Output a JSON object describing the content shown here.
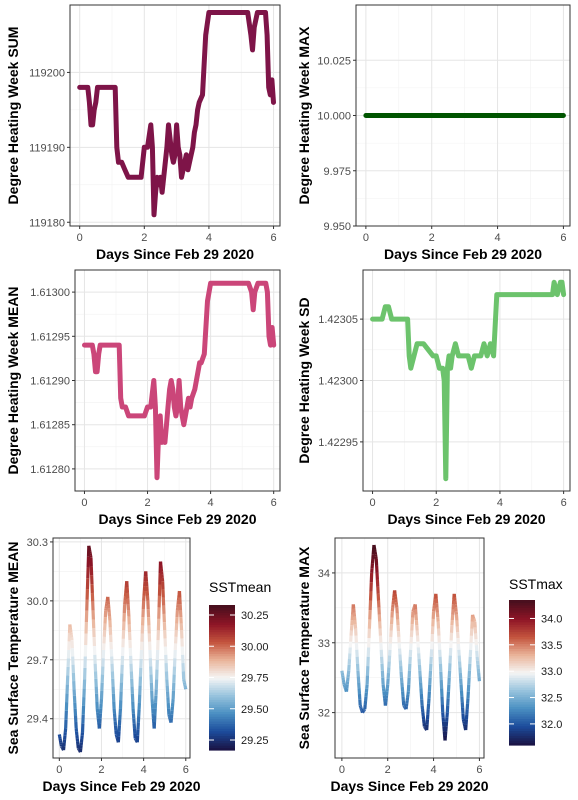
{
  "chart_data": [
    {
      "type": "line",
      "id": "p1",
      "xlabel": "Days Since Feb 29 2020",
      "ylabel": "Degree Heating Week SUM",
      "color": "#7e1448",
      "xlim": [
        -0.3,
        6.2
      ],
      "ylim": [
        119179.5,
        119209
      ],
      "xticks": [
        0,
        2,
        4,
        6
      ],
      "yticks": [
        119180,
        119190,
        119200
      ],
      "ytick_labels": [
        "119180",
        "119190",
        "119200"
      ],
      "x": [
        0,
        0.25,
        0.3,
        0.35,
        0.4,
        0.45,
        0.5,
        0.55,
        0.6,
        1.1,
        1.15,
        1.2,
        1.3,
        1.4,
        1.5,
        1.6,
        1.9,
        2.0,
        2.1,
        2.2,
        2.25,
        2.3,
        2.35,
        2.4,
        2.45,
        2.5,
        2.55,
        2.6,
        2.65,
        2.7,
        2.75,
        2.8,
        2.85,
        2.9,
        2.95,
        3.0,
        3.05,
        3.1,
        3.15,
        3.2,
        3.25,
        3.3,
        3.35,
        3.4,
        3.5,
        3.55,
        3.6,
        3.65,
        3.7,
        3.8,
        3.9,
        4.0,
        4.1,
        5.2,
        5.3,
        5.35,
        5.4,
        5.5,
        5.6,
        5.75,
        5.8,
        5.85,
        5.9,
        5.95,
        6.0
      ],
      "y": [
        119198,
        119198,
        119196,
        119193,
        119193,
        119195,
        119196,
        119198,
        119198,
        119198,
        119190,
        119188,
        119188,
        119187,
        119186,
        119186,
        119186,
        119190,
        119190,
        119193,
        119190,
        119181,
        119184,
        119186,
        119185,
        119186,
        119184,
        119186,
        119188,
        119190,
        119193,
        119191,
        119189,
        119188,
        119189,
        119193,
        119190,
        119189,
        119186,
        119187,
        119188,
        119189,
        119187,
        119188,
        119190,
        119192,
        119193,
        119195,
        119196,
        119197,
        119205,
        119208,
        119208,
        119208,
        119205,
        119203,
        119206,
        119208,
        119208,
        119208,
        119205,
        119198,
        119197,
        119199,
        119196
      ]
    },
    {
      "type": "line",
      "id": "p2",
      "xlabel": "Days Since Feb 29 2020",
      "ylabel": "Degree Heating Week MAX",
      "color": "#005500",
      "xlim": [
        -0.3,
        6.2
      ],
      "ylim": [
        9.95,
        10.05
      ],
      "xticks": [
        0,
        2,
        4,
        6
      ],
      "yticks": [
        9.95,
        9.975,
        10.0,
        10.025
      ],
      "ytick_labels": [
        "9.950",
        "9.975",
        "10.000",
        "10.025"
      ],
      "x": [
        0,
        6
      ],
      "y": [
        10.0,
        10.0
      ]
    },
    {
      "type": "line",
      "id": "p3",
      "xlabel": "Days Since Feb 29 2020",
      "ylabel": "Degree Heating Week MEAN",
      "color": "#cb4679",
      "xlim": [
        -0.3,
        6.2
      ],
      "ylim": [
        1.612775,
        1.613025
      ],
      "xticks": [
        0,
        2,
        4,
        6
      ],
      "yticks": [
        1.6128,
        1.61285,
        1.6129,
        1.61295,
        1.613
      ],
      "ytick_labels": [
        "1.61280",
        "1.61285",
        "1.61290",
        "1.61295",
        "1.61300"
      ],
      "x": [
        0,
        0.25,
        0.3,
        0.35,
        0.4,
        0.45,
        0.5,
        0.55,
        0.6,
        1.1,
        1.15,
        1.2,
        1.3,
        1.4,
        1.5,
        1.6,
        1.9,
        2.0,
        2.1,
        2.2,
        2.25,
        2.3,
        2.35,
        2.4,
        2.45,
        2.5,
        2.55,
        2.6,
        2.65,
        2.7,
        2.75,
        2.8,
        2.85,
        2.9,
        2.95,
        3.0,
        3.05,
        3.1,
        3.15,
        3.2,
        3.25,
        3.3,
        3.35,
        3.4,
        3.5,
        3.55,
        3.6,
        3.65,
        3.7,
        3.8,
        3.9,
        4.0,
        4.1,
        5.2,
        5.3,
        5.35,
        5.4,
        5.5,
        5.6,
        5.75,
        5.8,
        5.85,
        5.9,
        5.95,
        6.0
      ],
      "y": [
        1.61294,
        1.61294,
        1.61293,
        1.61291,
        1.61291,
        1.61293,
        1.61294,
        1.61294,
        1.61294,
        1.61294,
        1.61288,
        1.61287,
        1.61287,
        1.61286,
        1.61286,
        1.61286,
        1.61286,
        1.61287,
        1.61287,
        1.6129,
        1.61287,
        1.61279,
        1.61284,
        1.61286,
        1.61283,
        1.61284,
        1.61283,
        1.61285,
        1.61287,
        1.61289,
        1.6129,
        1.61289,
        1.61287,
        1.61286,
        1.61287,
        1.6129,
        1.61287,
        1.61286,
        1.61285,
        1.61286,
        1.61287,
        1.61288,
        1.61287,
        1.61288,
        1.61289,
        1.6129,
        1.61291,
        1.61292,
        1.61292,
        1.61293,
        1.61299,
        1.61301,
        1.61301,
        1.61301,
        1.613,
        1.61298,
        1.613,
        1.61301,
        1.61301,
        1.61301,
        1.613,
        1.61295,
        1.61294,
        1.61296,
        1.61294
      ]
    },
    {
      "type": "line",
      "id": "p4",
      "xlabel": "Days Since Feb 29 2020",
      "ylabel": "Degree Heating Week SD",
      "color": "#6cc36c",
      "xlim": [
        -0.3,
        6.2
      ],
      "ylim": [
        1.42291,
        1.42309
      ],
      "xticks": [
        0,
        2,
        4,
        6
      ],
      "yticks": [
        1.42295,
        1.423,
        1.42305
      ],
      "ytick_labels": [
        "1.42295",
        "1.42300",
        "1.42305"
      ],
      "x": [
        0,
        0.3,
        0.4,
        0.5,
        0.6,
        1.1,
        1.15,
        1.2,
        1.3,
        1.4,
        1.5,
        1.6,
        1.9,
        2.0,
        2.1,
        2.2,
        2.25,
        2.3,
        2.35,
        2.4,
        2.45,
        2.5,
        2.6,
        2.7,
        2.8,
        2.9,
        3.0,
        3.1,
        3.2,
        3.3,
        3.4,
        3.5,
        3.6,
        3.7,
        3.8,
        3.9,
        4.0,
        4.1,
        5.5,
        5.6,
        5.65,
        5.7,
        5.8,
        5.9,
        5.95,
        6.0
      ],
      "y": [
        1.42305,
        1.42305,
        1.42306,
        1.42306,
        1.42305,
        1.42305,
        1.42302,
        1.42301,
        1.42302,
        1.42303,
        1.42303,
        1.42303,
        1.42302,
        1.42302,
        1.42301,
        1.42301,
        1.423,
        1.42292,
        1.42301,
        1.42302,
        1.42301,
        1.42302,
        1.42303,
        1.42302,
        1.42302,
        1.42302,
        1.42302,
        1.42301,
        1.42302,
        1.42302,
        1.42302,
        1.42303,
        1.42302,
        1.42303,
        1.42302,
        1.42307,
        1.42307,
        1.42307,
        1.42307,
        1.42307,
        1.42307,
        1.42308,
        1.42307,
        1.42308,
        1.42308,
        1.42307
      ]
    },
    {
      "type": "scatter",
      "id": "p5",
      "xlabel": "Days Since Feb 29 2020",
      "ylabel": "Sea Surface Temperature MEAN",
      "xlim": [
        -0.3,
        6.2
      ],
      "ylim": [
        29.2,
        30.32
      ],
      "xticks": [
        0,
        2,
        4,
        6
      ],
      "yticks": [
        29.4,
        29.7,
        30.0,
        30.3
      ],
      "ytick_labels": [
        "29.4",
        "29.7",
        "30.0",
        "30.3"
      ],
      "legend_title": "SSTmean",
      "legend_range": [
        29.17,
        30.33
      ],
      "legend_ticks": [
        30.25,
        30.0,
        29.75,
        29.5,
        29.25
      ],
      "legend_tick_labels": [
        "30.25",
        "30.00",
        "29.75",
        "29.50",
        "29.25"
      ],
      "gradient": [
        "#1a1446",
        "#1c4c9c",
        "#4a8fc2",
        "#97c3dd",
        "#f5f5f5",
        "#eab49a",
        "#c4553e",
        "#8f1526",
        "#4a0f1e"
      ],
      "y_min": 29.2,
      "y_max": 30.28,
      "x": [
        0,
        0.1,
        0.2,
        0.3,
        0.4,
        0.5,
        0.6,
        0.7,
        0.8,
        0.9,
        1.0,
        1.1,
        1.2,
        1.3,
        1.4,
        1.5,
        1.6,
        1.7,
        1.8,
        1.9,
        2.0,
        2.1,
        2.2,
        2.3,
        2.4,
        2.5,
        2.6,
        2.7,
        2.8,
        2.9,
        3.0,
        3.1,
        3.2,
        3.3,
        3.4,
        3.5,
        3.6,
        3.7,
        3.8,
        3.9,
        4.0,
        4.1,
        4.2,
        4.3,
        4.4,
        4.5,
        4.6,
        4.7,
        4.8,
        4.9,
        5.0,
        5.1,
        5.2,
        5.3,
        5.4,
        5.5,
        5.6,
        5.7,
        5.8,
        5.9,
        6.0
      ],
      "y": [
        29.32,
        29.26,
        29.24,
        29.35,
        29.62,
        29.88,
        29.8,
        29.55,
        29.35,
        29.25,
        29.23,
        29.33,
        29.6,
        29.95,
        30.28,
        30.22,
        29.95,
        29.68,
        29.45,
        29.35,
        29.5,
        29.75,
        29.95,
        30.02,
        29.9,
        29.68,
        29.45,
        29.32,
        29.28,
        29.45,
        29.72,
        29.98,
        30.1,
        29.92,
        29.68,
        29.45,
        29.3,
        29.28,
        29.48,
        29.75,
        30.0,
        30.15,
        30.0,
        29.75,
        29.5,
        29.35,
        29.55,
        29.85,
        30.2,
        30.1,
        29.85,
        29.6,
        29.42,
        29.38,
        29.5,
        29.75,
        29.95,
        30.05,
        29.85,
        29.6,
        29.55
      ]
    },
    {
      "type": "scatter",
      "id": "p6",
      "xlabel": "Days Since Feb 29 2020",
      "ylabel": "Sea Surface Temperature MAX",
      "xlim": [
        -0.3,
        6.2
      ],
      "ylim": [
        31.35,
        34.5
      ],
      "xticks": [
        0,
        2,
        4,
        6
      ],
      "yticks": [
        32,
        33,
        34
      ],
      "ytick_labels": [
        "32",
        "33",
        "34"
      ],
      "legend_title": "SSTmax",
      "legend_range": [
        31.6,
        34.35
      ],
      "legend_ticks": [
        34.0,
        33.5,
        33.0,
        32.5,
        32.0
      ],
      "legend_tick_labels": [
        "34.0",
        "33.5",
        "33.0",
        "32.5",
        "32.0"
      ],
      "gradient": [
        "#1a1446",
        "#1c4c9c",
        "#4a8fc2",
        "#97c3dd",
        "#f5f5f5",
        "#eab49a",
        "#c4553e",
        "#8f1526",
        "#4a0f1e"
      ],
      "y_min": 31.5,
      "y_max": 34.4,
      "x": [
        0,
        0.1,
        0.2,
        0.3,
        0.4,
        0.5,
        0.6,
        0.7,
        0.8,
        0.9,
        1.0,
        1.1,
        1.2,
        1.3,
        1.4,
        1.5,
        1.6,
        1.7,
        1.8,
        1.9,
        2.0,
        2.1,
        2.2,
        2.3,
        2.4,
        2.5,
        2.6,
        2.7,
        2.8,
        2.9,
        3.0,
        3.1,
        3.2,
        3.3,
        3.4,
        3.5,
        3.6,
        3.7,
        3.8,
        3.9,
        4.0,
        4.1,
        4.2,
        4.3,
        4.4,
        4.5,
        4.6,
        4.7,
        4.8,
        4.9,
        5.0,
        5.1,
        5.2,
        5.3,
        5.4,
        5.5,
        5.6,
        5.7,
        5.8,
        5.9,
        6.0
      ],
      "y": [
        32.6,
        32.4,
        32.3,
        32.6,
        33.1,
        33.55,
        33.2,
        32.6,
        32.1,
        32.0,
        32.05,
        32.4,
        33.2,
        34.0,
        34.4,
        34.2,
        33.6,
        33.0,
        32.4,
        32.1,
        32.4,
        32.9,
        33.45,
        33.75,
        33.5,
        33.0,
        32.5,
        32.1,
        32.05,
        32.3,
        32.9,
        33.45,
        33.55,
        33.1,
        32.6,
        32.1,
        31.8,
        31.75,
        32.2,
        32.8,
        33.45,
        33.7,
        33.3,
        32.7,
        32.0,
        31.6,
        32.0,
        32.6,
        33.25,
        33.7,
        33.4,
        32.9,
        32.4,
        31.9,
        31.75,
        32.2,
        32.8,
        33.4,
        33.3,
        32.8,
        32.45
      ]
    }
  ]
}
